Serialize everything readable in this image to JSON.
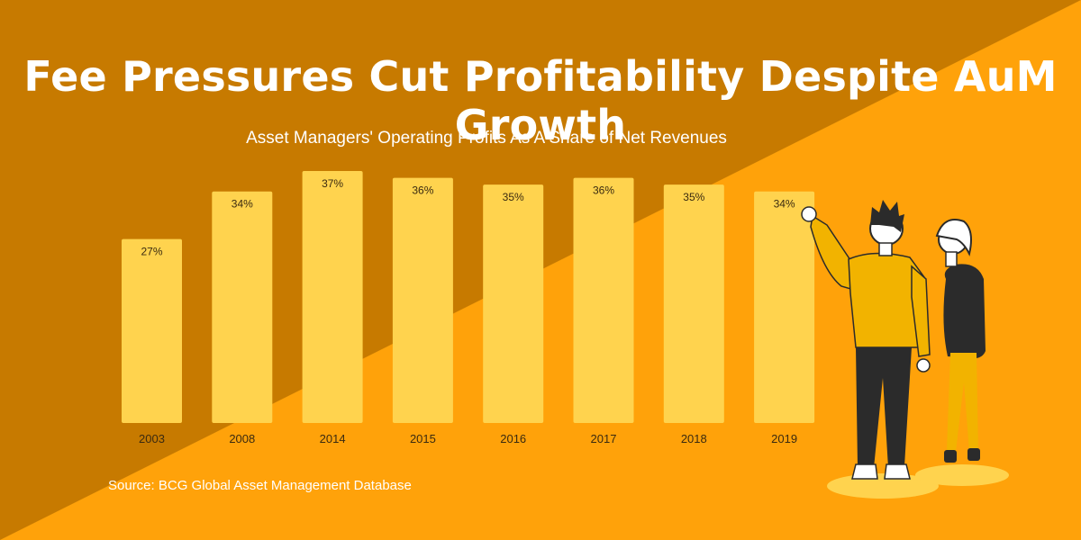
{
  "colors": {
    "background_dark": "#C77A00",
    "background_light": "#FFA20A",
    "bar": "#FFD34E",
    "text_white": "#FFFFFF",
    "text_dark": "#3A2A10"
  },
  "chart_data": {
    "type": "bar",
    "title": "Fee Pressures Cut Profitability Despite AuM Growth",
    "subtitle": "Asset Managers' Operating Profits As A Share of Net Revenues",
    "categories": [
      "2003",
      "2008",
      "2014",
      "2015",
      "2016",
      "2017",
      "2018",
      "2019"
    ],
    "values": [
      27,
      34,
      37,
      36,
      35,
      36,
      35,
      34
    ],
    "value_labels": [
      "27%",
      "34%",
      "37%",
      "36%",
      "35%",
      "36%",
      "35%",
      "34%"
    ],
    "xlabel": "",
    "ylabel": "",
    "ylim": [
      0,
      37
    ],
    "grid": false,
    "source": "Source: BCG Global Asset Management Database"
  },
  "illustration": {
    "name": "two-people-looking-at-chart"
  }
}
